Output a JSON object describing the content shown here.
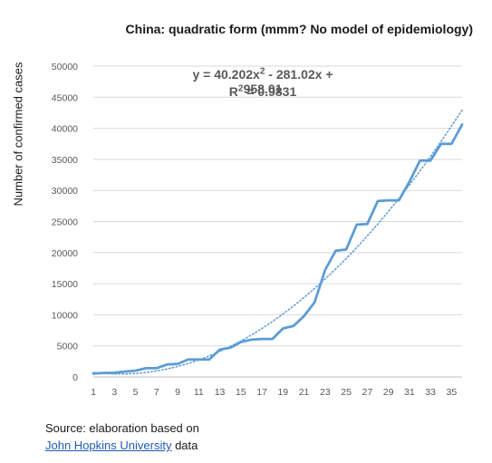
{
  "chart_data": {
    "type": "line",
    "title": "China: quadratic form (mmm? No model of epidemiology)",
    "equation": {
      "prefix": "y = 40.202x",
      "power": "2",
      "suffix": " - 281.02x + 958.01",
      "r_prefix": "R",
      "r_power": "2",
      "r_suffix": " = 0.9831"
    },
    "ylabel": "Number of confirmed cases",
    "xlabel": "",
    "ylim": [
      0,
      50000
    ],
    "yticks": [
      0,
      5000,
      10000,
      15000,
      20000,
      25000,
      30000,
      35000,
      40000,
      45000,
      50000
    ],
    "xlim": [
      1,
      36
    ],
    "xtick_labels": [
      1,
      3,
      5,
      7,
      9,
      11,
      13,
      15,
      17,
      19,
      21,
      23,
      25,
      27,
      29,
      31,
      33,
      35
    ],
    "grid": "horizontal",
    "series": [
      {
        "style": "solid",
        "color": "#5b9bd5",
        "x": [
          1,
          2,
          3,
          4,
          5,
          6,
          7,
          8,
          9,
          10,
          11,
          12,
          13,
          14,
          15,
          16,
          17,
          18,
          19,
          20,
          21,
          22,
          23,
          24,
          25,
          26,
          27,
          28,
          29,
          30,
          31,
          32,
          33,
          34,
          35,
          36
        ],
        "values": [
          550,
          640,
          680,
          850,
          1000,
          1400,
          1400,
          2000,
          2100,
          2800,
          2800,
          2800,
          4400,
          4700,
          5600,
          6000,
          6100,
          6100,
          7800,
          8200,
          9800,
          12000,
          17200,
          20300,
          20500,
          24500,
          24600,
          28300,
          28400,
          28400,
          31400,
          34800,
          34800,
          37500,
          37500,
          40600
        ]
      },
      {
        "style": "dotted",
        "color": "#5b9bd5",
        "trendline": "quadratic",
        "coefficients": [
          40.202,
          -281.02,
          958.01
        ]
      }
    ]
  },
  "source": {
    "line1": "Source: elaboration based on",
    "link_text": "John Hopkins University",
    "suffix": " data"
  }
}
